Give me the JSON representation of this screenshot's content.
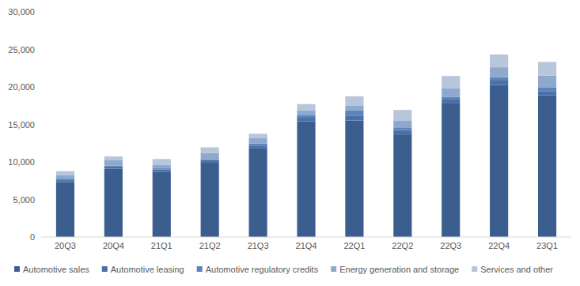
{
  "chart_data": {
    "type": "bar",
    "stacked": true,
    "grid": false,
    "legend": "bottom",
    "categories": [
      "20Q3",
      "20Q4",
      "21Q1",
      "21Q2",
      "21Q3",
      "21Q4",
      "22Q1",
      "22Q2",
      "22Q3",
      "22Q4",
      "23Q1"
    ],
    "series": [
      {
        "name": "Automotive sales",
        "color": "#3b5e8f",
        "values": [
          7300,
          9100,
          8700,
          9900,
          11800,
          15400,
          15514,
          13670,
          17785,
          20241,
          18878
        ]
      },
      {
        "name": "Automotive leasing",
        "color": "#4a70a6",
        "values": [
          270,
          280,
          300,
          330,
          385,
          490,
          668,
          588,
          621,
          599,
          564
        ]
      },
      {
        "name": "Automotive regulatory credits",
        "color": "#5b84bd",
        "values": [
          200,
          150,
          150,
          150,
          280,
          314,
          679,
          344,
          286,
          467,
          521
        ]
      },
      {
        "name": "Energy generation and storage",
        "color": "#8fa9cd",
        "values": [
          450,
          750,
          494,
          800,
          700,
          690,
          616,
          866,
          1117,
          1310,
          1529
        ]
      },
      {
        "name": "Services and other",
        "color": "#b8c6dc",
        "values": [
          550,
          460,
          750,
          770,
          600,
          820,
          1279,
          1466,
          1645,
          1701,
          1837
        ]
      }
    ],
    "ylim": [
      0,
      30000
    ],
    "yticks": [
      0,
      {
        "value": 5000,
        "label": "5,000"
      },
      {
        "value": 10000,
        "label": "10,000"
      },
      {
        "value": 15000,
        "label": "15,000"
      },
      {
        "value": 20000,
        "label": "20,000"
      },
      {
        "value": 25000,
        "label": "25,000"
      },
      {
        "value": 30000,
        "label": "30,000"
      }
    ]
  }
}
